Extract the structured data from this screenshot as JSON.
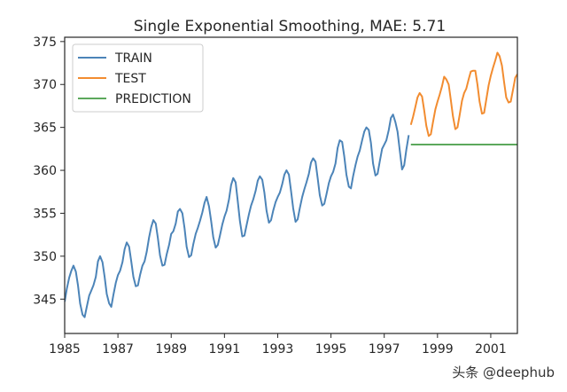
{
  "chart_data": {
    "type": "line",
    "title": "Single Exponential Smoothing, MAE: 5.71",
    "xlabel": "",
    "ylabel": "",
    "xlim": [
      1985.0,
      2002.0
    ],
    "ylim": [
      341.0,
      375.5
    ],
    "xticks": [
      1985,
      1987,
      1989,
      1991,
      1993,
      1995,
      1997,
      1999,
      2001
    ],
    "yticks": [
      345,
      350,
      355,
      360,
      365,
      370,
      375
    ],
    "legend": {
      "placement": "top-left",
      "entries": [
        "TRAIN",
        "TEST",
        "PREDICTION"
      ]
    },
    "grid": false,
    "series": [
      {
        "name": "TRAIN",
        "color": "#4c84b8",
        "x": [
          1985.0,
          1985.08,
          1985.17,
          1985.25,
          1985.33,
          1985.42,
          1985.5,
          1985.58,
          1985.67,
          1985.75,
          1985.83,
          1985.92,
          1986.0,
          1986.08,
          1986.17,
          1986.25,
          1986.33,
          1986.42,
          1986.5,
          1986.58,
          1986.67,
          1986.75,
          1986.83,
          1986.92,
          1987.0,
          1987.08,
          1987.17,
          1987.25,
          1987.33,
          1987.42,
          1987.5,
          1987.58,
          1987.67,
          1987.75,
          1987.83,
          1987.92,
          1988.0,
          1988.08,
          1988.17,
          1988.25,
          1988.33,
          1988.42,
          1988.5,
          1988.58,
          1988.67,
          1988.75,
          1988.83,
          1988.92,
          1989.0,
          1989.08,
          1989.17,
          1989.25,
          1989.33,
          1989.42,
          1989.5,
          1989.58,
          1989.67,
          1989.75,
          1989.83,
          1989.92,
          1990.0,
          1990.08,
          1990.17,
          1990.25,
          1990.33,
          1990.42,
          1990.5,
          1990.58,
          1990.67,
          1990.75,
          1990.83,
          1990.92,
          1991.0,
          1991.08,
          1991.17,
          1991.25,
          1991.33,
          1991.42,
          1991.5,
          1991.58,
          1991.67,
          1991.75,
          1991.83,
          1991.92,
          1992.0,
          1992.08,
          1992.17,
          1992.25,
          1992.33,
          1992.42,
          1992.5,
          1992.58,
          1992.67,
          1992.75,
          1992.83,
          1992.92,
          1993.0,
          1993.08,
          1993.17,
          1993.25,
          1993.33,
          1993.42,
          1993.5,
          1993.58,
          1993.67,
          1993.75,
          1993.83,
          1993.92,
          1994.0,
          1994.08,
          1994.17,
          1994.25,
          1994.33,
          1994.42,
          1994.5,
          1994.58,
          1994.67,
          1994.75,
          1994.83,
          1994.92,
          1995.0,
          1995.08,
          1995.17,
          1995.25,
          1995.33,
          1995.42,
          1995.5,
          1995.58,
          1995.67,
          1995.75,
          1995.83,
          1995.92,
          1996.0,
          1996.08,
          1996.17,
          1996.25,
          1996.33,
          1996.42,
          1996.5,
          1996.58,
          1996.67,
          1996.75,
          1996.83,
          1996.92,
          1997.0,
          1997.08,
          1997.17,
          1997.25,
          1997.33,
          1997.42,
          1997.5,
          1997.58,
          1997.67,
          1997.75,
          1997.83,
          1997.92
        ],
        "y": [
          344.7,
          346.2,
          347.5,
          348.3,
          348.9,
          348.2,
          346.6,
          344.5,
          343.2,
          342.9,
          344.1,
          345.4,
          346.0,
          346.6,
          347.6,
          349.4,
          350.0,
          349.3,
          347.6,
          345.6,
          344.5,
          344.1,
          345.5,
          346.9,
          347.8,
          348.3,
          349.3,
          350.8,
          351.6,
          351.1,
          349.4,
          347.6,
          346.5,
          346.6,
          347.8,
          348.9,
          349.4,
          350.5,
          352.2,
          353.4,
          354.2,
          353.8,
          352.1,
          350.1,
          348.9,
          349.0,
          350.2,
          351.3,
          352.6,
          352.9,
          353.8,
          355.2,
          355.5,
          355.0,
          353.3,
          351.1,
          349.9,
          350.1,
          351.4,
          352.6,
          353.3,
          354.1,
          355.1,
          356.2,
          356.9,
          355.8,
          354.1,
          352.2,
          351.0,
          351.3,
          352.4,
          353.7,
          354.6,
          355.3,
          356.6,
          358.3,
          359.1,
          358.6,
          356.4,
          354.1,
          352.3,
          352.4,
          353.6,
          354.9,
          355.9,
          356.6,
          357.6,
          358.8,
          359.3,
          358.9,
          357.4,
          355.3,
          353.9,
          354.2,
          355.3,
          356.3,
          356.9,
          357.4,
          358.4,
          359.5,
          360.0,
          359.5,
          357.6,
          355.6,
          354.0,
          354.3,
          355.6,
          356.9,
          357.8,
          358.6,
          359.6,
          360.9,
          361.4,
          361.0,
          359.1,
          357.1,
          355.9,
          356.1,
          357.2,
          358.5,
          359.3,
          359.8,
          360.8,
          362.6,
          363.5,
          363.3,
          361.6,
          359.5,
          358.1,
          357.9,
          359.3,
          360.6,
          361.6,
          362.3,
          363.5,
          364.5,
          365.0,
          364.7,
          363.2,
          360.8,
          359.4,
          359.6,
          361.0,
          362.5,
          363.0,
          363.5,
          364.7,
          366.1,
          366.5,
          365.6,
          364.5,
          362.4,
          360.1,
          360.6,
          362.4,
          364.1
        ]
      },
      {
        "name": "TEST",
        "color": "#f28c30",
        "x": [
          1998.0,
          1998.08,
          1998.17,
          1998.25,
          1998.33,
          1998.42,
          1998.5,
          1998.58,
          1998.67,
          1998.75,
          1998.83,
          1998.92,
          1999.0,
          1999.08,
          1999.17,
          1999.25,
          1999.33,
          1999.42,
          1999.5,
          1999.58,
          1999.67,
          1999.75,
          1999.83,
          1999.92,
          2000.0,
          2000.08,
          2000.17,
          2000.25,
          2000.33,
          2000.42,
          2000.5,
          2000.58,
          2000.67,
          2000.75,
          2000.83,
          2000.92,
          2001.0,
          2001.08,
          2001.17,
          2001.25,
          2001.33,
          2001.42,
          2001.5,
          2001.58,
          2001.67,
          2001.75,
          2001.83,
          2001.92,
          2002.0
        ],
        "y": [
          365.3,
          366.2,
          367.4,
          368.5,
          369.0,
          368.6,
          367.0,
          365.2,
          364.0,
          364.2,
          365.6,
          367.1,
          368.0,
          368.8,
          369.8,
          370.9,
          370.6,
          370.0,
          368.2,
          366.3,
          364.8,
          365.0,
          366.4,
          368.1,
          369.0,
          369.5,
          370.6,
          371.5,
          371.6,
          371.6,
          370.0,
          368.0,
          366.6,
          366.7,
          368.2,
          369.9,
          371.0,
          371.9,
          372.8,
          373.7,
          373.3,
          372.2,
          370.3,
          368.5,
          367.9,
          368.0,
          369.3,
          370.8,
          371.2
        ]
      },
      {
        "name": "PREDICTION",
        "color": "#5ca85c",
        "x": [
          1998.0,
          2002.0
        ],
        "y": [
          363.0,
          363.0
        ]
      }
    ]
  },
  "watermark": "头条 @deephub"
}
